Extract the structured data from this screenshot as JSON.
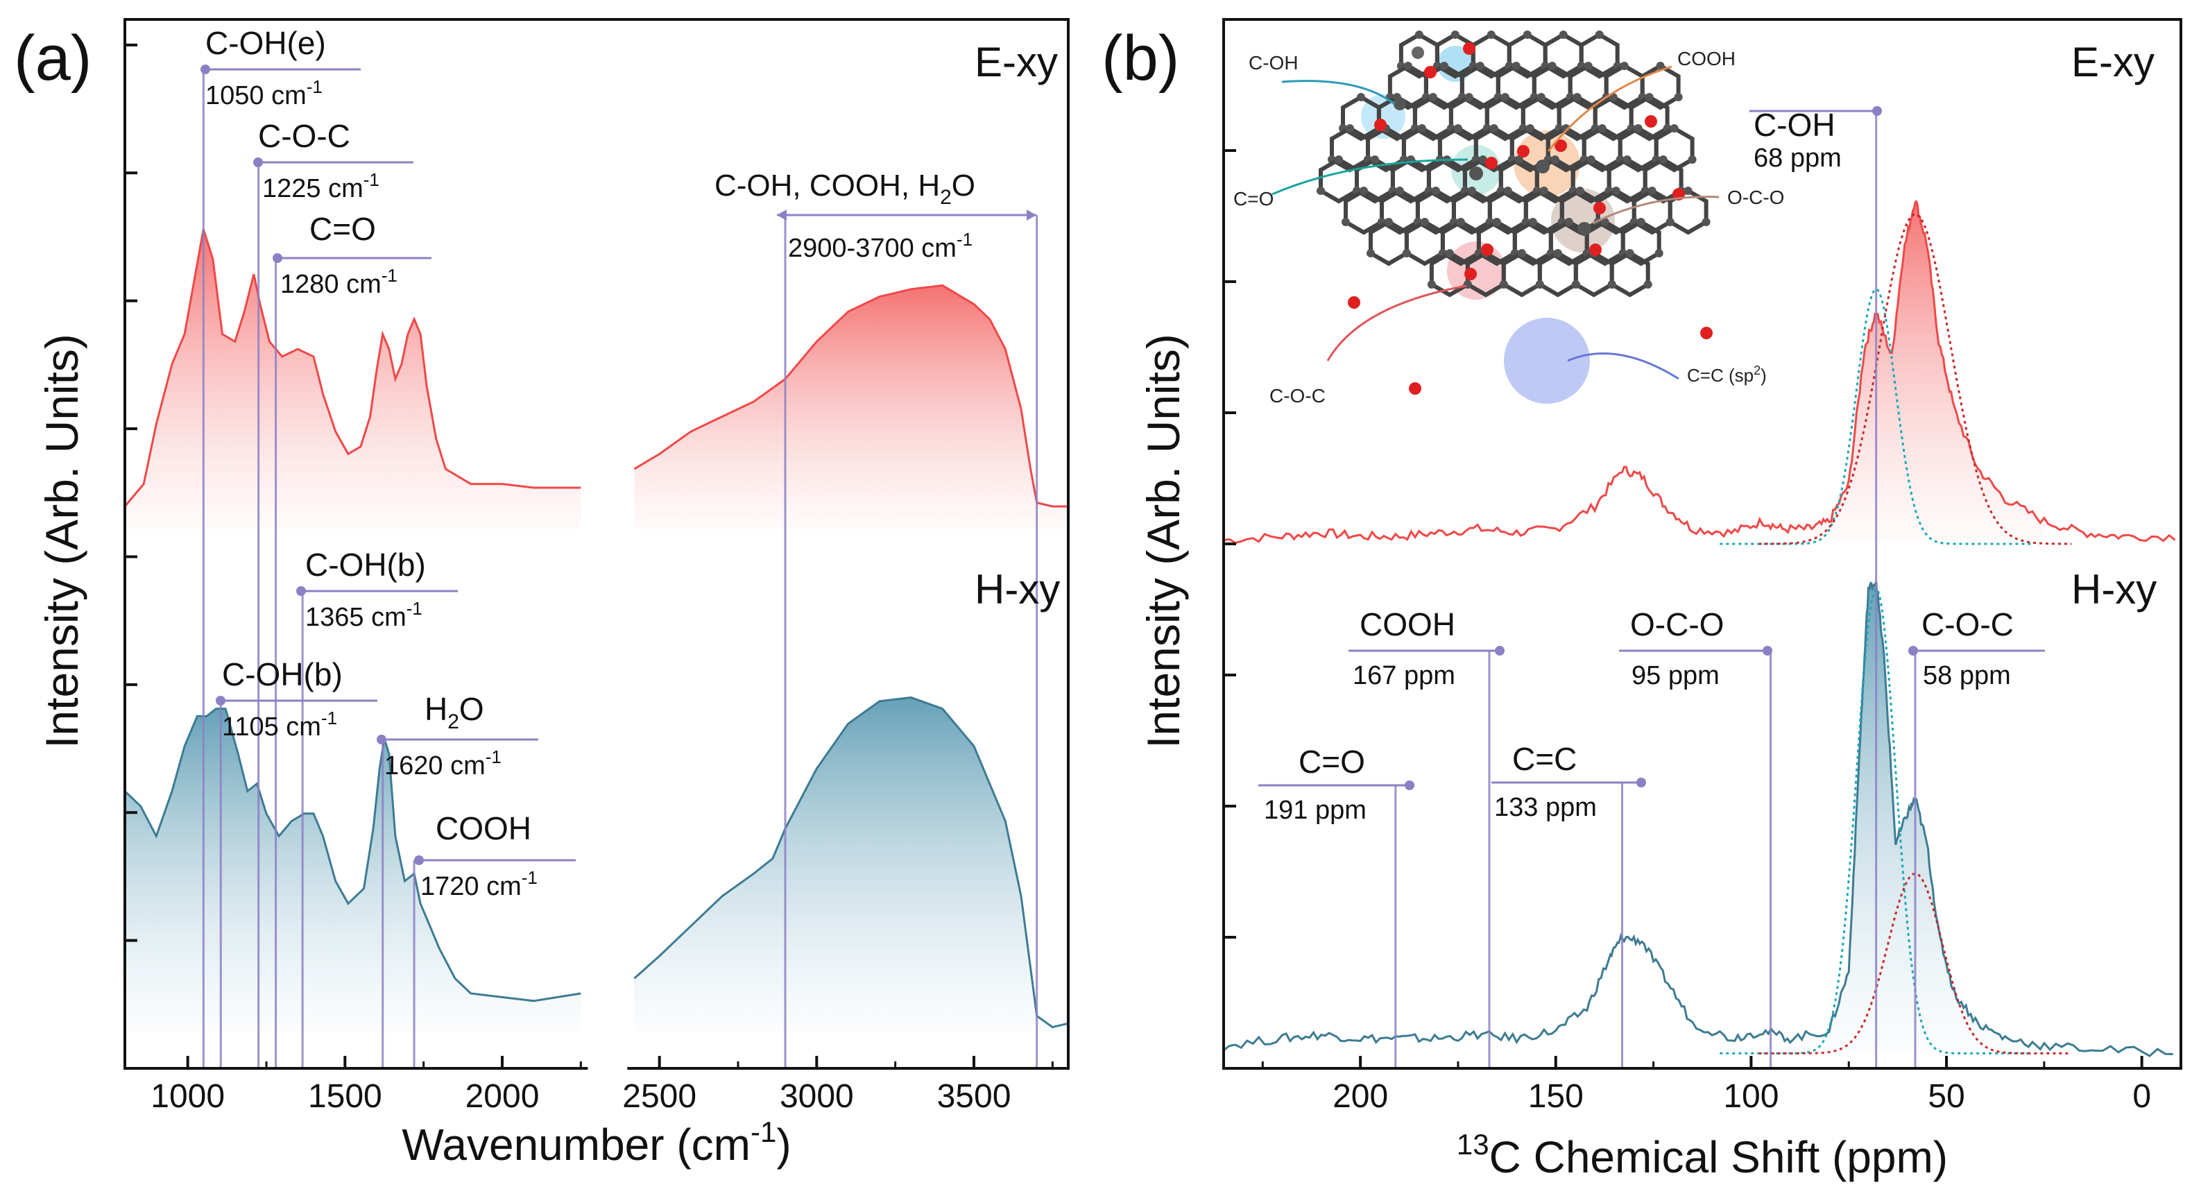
{
  "colors": {
    "exy": "#f04848",
    "exy_fill": "#f47a7a",
    "hxy": "#3d7b93",
    "hxy_fill": "#5b97b0",
    "marker": "#8c80c4",
    "axis": "#111111",
    "fit_teal": "#1aa7b8",
    "fit_red": "#c8282a"
  },
  "chart_data": [
    {
      "type": "line",
      "panel": "(a)",
      "xlabel": "Wavenumber (cm",
      "xlabel_sup": "-1",
      "xlabel_close": ")",
      "ylabel": "Intensity (Arb. Units)",
      "xlim": [
        800,
        3800
      ],
      "ylim": [
        0,
        1.4
      ],
      "break": [
        2250,
        2420
      ],
      "xticks": [
        1000,
        1500,
        2000,
        2500,
        3000,
        3500
      ],
      "series": [
        {
          "name": "E-xy",
          "offset": 0.72,
          "points": [
            [
              800,
              0.75
            ],
            [
              860,
              0.78
            ],
            [
              900,
              0.86
            ],
            [
              950,
              0.94
            ],
            [
              990,
              0.98
            ],
            [
              1020,
              1.05
            ],
            [
              1050,
              1.12
            ],
            [
              1080,
              1.08
            ],
            [
              1110,
              0.98
            ],
            [
              1150,
              0.97
            ],
            [
              1180,
              1.01
            ],
            [
              1210,
              1.06
            ],
            [
              1230,
              1.02
            ],
            [
              1260,
              0.97
            ],
            [
              1300,
              0.95
            ],
            [
              1350,
              0.96
            ],
            [
              1400,
              0.95
            ],
            [
              1430,
              0.9
            ],
            [
              1470,
              0.85
            ],
            [
              1510,
              0.82
            ],
            [
              1550,
              0.83
            ],
            [
              1580,
              0.87
            ],
            [
              1600,
              0.93
            ],
            [
              1620,
              0.98
            ],
            [
              1640,
              0.96
            ],
            [
              1660,
              0.92
            ],
            [
              1680,
              0.94
            ],
            [
              1700,
              0.98
            ],
            [
              1720,
              1.0
            ],
            [
              1740,
              0.98
            ],
            [
              1760,
              0.91
            ],
            [
              1790,
              0.84
            ],
            [
              1820,
              0.8
            ],
            [
              1900,
              0.78
            ],
            [
              2000,
              0.78
            ],
            [
              2100,
              0.775
            ],
            [
              2250,
              0.775
            ],
            [
              2420,
              0.8
            ],
            [
              2500,
              0.82
            ],
            [
              2600,
              0.85
            ],
            [
              2700,
              0.87
            ],
            [
              2800,
              0.89
            ],
            [
              2900,
              0.92
            ],
            [
              3000,
              0.97
            ],
            [
              3100,
              1.01
            ],
            [
              3200,
              1.03
            ],
            [
              3300,
              1.04
            ],
            [
              3400,
              1.045
            ],
            [
              3500,
              1.02
            ],
            [
              3550,
              1.0
            ],
            [
              3600,
              0.96
            ],
            [
              3650,
              0.88
            ],
            [
              3680,
              0.8
            ],
            [
              3700,
              0.755
            ],
            [
              3750,
              0.75
            ],
            [
              3800,
              0.75
            ]
          ]
        },
        {
          "name": "H-xy",
          "offset": 0.05,
          "points": [
            [
              800,
              0.37
            ],
            [
              850,
              0.35
            ],
            [
              900,
              0.31
            ],
            [
              950,
              0.37
            ],
            [
              990,
              0.43
            ],
            [
              1030,
              0.47
            ],
            [
              1060,
              0.47
            ],
            [
              1090,
              0.48
            ],
            [
              1120,
              0.48
            ],
            [
              1160,
              0.42
            ],
            [
              1190,
              0.37
            ],
            [
              1220,
              0.38
            ],
            [
              1250,
              0.34
            ],
            [
              1290,
              0.31
            ],
            [
              1330,
              0.33
            ],
            [
              1370,
              0.34
            ],
            [
              1400,
              0.34
            ],
            [
              1430,
              0.31
            ],
            [
              1470,
              0.25
            ],
            [
              1510,
              0.22
            ],
            [
              1560,
              0.24
            ],
            [
              1590,
              0.32
            ],
            [
              1610,
              0.4
            ],
            [
              1625,
              0.44
            ],
            [
              1640,
              0.42
            ],
            [
              1660,
              0.31
            ],
            [
              1690,
              0.25
            ],
            [
              1720,
              0.26
            ],
            [
              1740,
              0.22
            ],
            [
              1760,
              0.2
            ],
            [
              1800,
              0.16
            ],
            [
              1850,
              0.12
            ],
            [
              1900,
              0.1
            ],
            [
              2000,
              0.095
            ],
            [
              2100,
              0.09
            ],
            [
              2250,
              0.1
            ],
            [
              2420,
              0.12
            ],
            [
              2500,
              0.15
            ],
            [
              2600,
              0.19
            ],
            [
              2700,
              0.23
            ],
            [
              2800,
              0.26
            ],
            [
              2860,
              0.28
            ],
            [
              2900,
              0.32
            ],
            [
              3000,
              0.4
            ],
            [
              3100,
              0.46
            ],
            [
              3200,
              0.49
            ],
            [
              3300,
              0.495
            ],
            [
              3400,
              0.48
            ],
            [
              3500,
              0.43
            ],
            [
              3600,
              0.33
            ],
            [
              3650,
              0.23
            ],
            [
              3700,
              0.07
            ],
            [
              3750,
              0.055
            ],
            [
              3800,
              0.06
            ]
          ]
        }
      ],
      "labels": [
        {
          "name": "E-xy"
        },
        {
          "name": "H-xy"
        }
      ],
      "annotations": [
        {
          "text": "C-OH(e)",
          "value": "1050 cm",
          "sup": "-1",
          "x": 1050
        },
        {
          "text": "C-O-C",
          "value": "1225 cm",
          "sup": "-1",
          "x": 1225
        },
        {
          "text": "C=O",
          "value": "1280 cm",
          "sup": "-1",
          "x": 1280
        },
        {
          "text": "C-OH(b)",
          "value": "1365 cm",
          "sup": "-1",
          "x": 1365
        },
        {
          "text": "C-OH(b)",
          "value": "1105 cm",
          "sup": "-1",
          "x": 1105
        },
        {
          "text": "H",
          "sub": "2",
          "text_end": "O",
          "value": "1620 cm",
          "sup": "-1",
          "x": 1620
        },
        {
          "text": "COOH",
          "value": "1720 cm",
          "sup": "-1",
          "x": 1720
        },
        {
          "text": "C-OH, COOH, H",
          "sub": "2",
          "text_end": "O",
          "value": "2900-3700 cm",
          "sup": "-1",
          "x_range": [
            2900,
            3700
          ]
        }
      ]
    },
    {
      "type": "line",
      "panel": "(b)",
      "xlabel_pre": "13",
      "xlabel": "C Chemical Shift (ppm)",
      "ylabel": "Intensity (Arb. Units)",
      "xlim": [
        235,
        -10
      ],
      "ylim": [
        0,
        1.4
      ],
      "xticks": [
        200,
        150,
        100,
        50,
        0
      ],
      "series": [
        {
          "name": "E-xy",
          "offset": 0.7,
          "points": [
            [
              235,
              0.705
            ],
            [
              220,
              0.71
            ],
            [
              210,
              0.715
            ],
            [
              200,
              0.71
            ],
            [
              190,
              0.71
            ],
            [
              180,
              0.715
            ],
            [
              170,
              0.72
            ],
            [
              160,
              0.715
            ],
            [
              150,
              0.72
            ],
            [
              140,
              0.75
            ],
            [
              133,
              0.8
            ],
            [
              128,
              0.79
            ],
            [
              122,
              0.75
            ],
            [
              115,
              0.72
            ],
            [
              105,
              0.715
            ],
            [
              97,
              0.73
            ],
            [
              92,
              0.72
            ],
            [
              85,
              0.72
            ],
            [
              80,
              0.73
            ],
            [
              75,
              0.78
            ],
            [
              71,
              0.96
            ],
            [
              68,
              1.01
            ],
            [
              64,
              0.95
            ],
            [
              61,
              1.09
            ],
            [
              58,
              1.16
            ],
            [
              55,
              1.1
            ],
            [
              52,
              0.97
            ],
            [
              48,
              0.88
            ],
            [
              42,
              0.8
            ],
            [
              35,
              0.76
            ],
            [
              25,
              0.73
            ],
            [
              15,
              0.715
            ],
            [
              5,
              0.71
            ],
            [
              -10,
              0.71
            ]
          ]
        },
        {
          "name": "H-xy",
          "offset": 0.02,
          "points": [
            [
              235,
              0.03
            ],
            [
              220,
              0.04
            ],
            [
              210,
              0.045
            ],
            [
              200,
              0.04
            ],
            [
              190,
              0.04
            ],
            [
              180,
              0.04
            ],
            [
              170,
              0.045
            ],
            [
              160,
              0.04
            ],
            [
              150,
              0.05
            ],
            [
              142,
              0.08
            ],
            [
              136,
              0.15
            ],
            [
              133,
              0.175
            ],
            [
              128,
              0.17
            ],
            [
              122,
              0.12
            ],
            [
              115,
              0.06
            ],
            [
              105,
              0.04
            ],
            [
              97,
              0.05
            ],
            [
              90,
              0.04
            ],
            [
              80,
              0.05
            ],
            [
              75,
              0.13
            ],
            [
              72,
              0.45
            ],
            [
              70,
              0.64
            ],
            [
              68,
              0.65
            ],
            [
              66,
              0.55
            ],
            [
              63,
              0.3
            ],
            [
              60,
              0.34
            ],
            [
              58,
              0.36
            ],
            [
              55,
              0.3
            ],
            [
              52,
              0.18
            ],
            [
              48,
              0.1
            ],
            [
              42,
              0.06
            ],
            [
              35,
              0.04
            ],
            [
              25,
              0.03
            ],
            [
              10,
              0.025
            ],
            [
              -10,
              0.02
            ]
          ]
        }
      ],
      "fits": [
        {
          "series": "E-xy",
          "color": "teal",
          "center": 68,
          "amp": 0.34,
          "width": 5
        },
        {
          "series": "E-xy",
          "color": "red",
          "center": 58,
          "amp": 0.44,
          "width": 9
        },
        {
          "series": "H-xy",
          "color": "teal",
          "center": 68,
          "amp": 0.62,
          "width": 5
        },
        {
          "series": "H-xy",
          "color": "red",
          "center": 58,
          "amp": 0.24,
          "width": 7
        }
      ],
      "labels": [
        {
          "name": "E-xy"
        },
        {
          "name": "H-xy"
        }
      ],
      "annotations": [
        {
          "text": "C-OH",
          "value": "68 ppm",
          "x": 68
        },
        {
          "text": "COOH",
          "value": "167 ppm",
          "x": 167
        },
        {
          "text": "O-C-O",
          "value": "95 ppm",
          "x": 95
        },
        {
          "text": "C-O-C",
          "value": "58 ppm",
          "x": 58
        },
        {
          "text": "C=O",
          "value": "191 ppm",
          "x": 191
        },
        {
          "text": "C=C",
          "value": "133 ppm",
          "x": 133
        }
      ],
      "inset_labels": {
        "c_oh": "C-OH",
        "cooh": "COOH",
        "c_eq_o": "C=O",
        "o_c_o": "O-C-O",
        "c_o_c": "C-O-C",
        "c_eq_c": "C=C (sp",
        "c_eq_c_sup": "2",
        "c_eq_c_close": ")"
      }
    }
  ]
}
